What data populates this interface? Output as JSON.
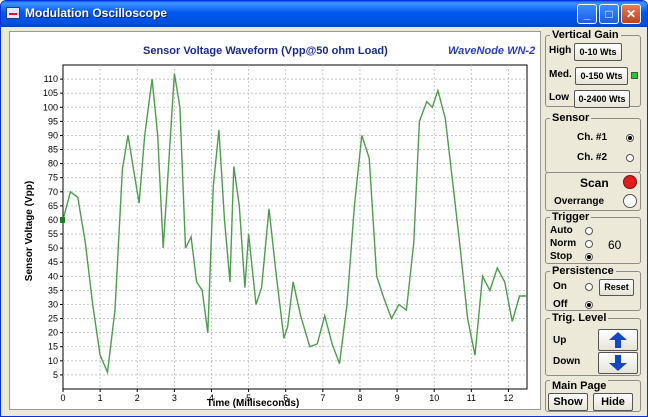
{
  "window": {
    "title": "Modulation Oscilloscope"
  },
  "plot": {
    "title": "Sensor Voltage Waveform (Vpp@50 ohm Load)",
    "brand": "WaveNode WN-2",
    "marker_color": "#1c7d1c"
  },
  "chart_data": {
    "type": "line",
    "xlabel": "Time (Milliseconds)",
    "ylabel": "Sensor Voltage (Vpp)",
    "xlim": [
      0,
      12.5
    ],
    "ylim": [
      0,
      115
    ],
    "x_ticks": [
      "0",
      "1",
      "2",
      "3",
      "4",
      "5",
      "6",
      "7",
      "8",
      "9",
      "10",
      "11",
      "12"
    ],
    "y_ticks": [
      "5",
      "10",
      "15",
      "20",
      "25",
      "30",
      "35",
      "40",
      "45",
      "50",
      "55",
      "60",
      "65",
      "70",
      "75",
      "80",
      "85",
      "90",
      "95",
      "100",
      "105",
      "110"
    ],
    "grid": true,
    "line_color": "#4f9b4f",
    "x": [
      0,
      0.2,
      0.4,
      0.6,
      0.8,
      1.0,
      1.2,
      1.4,
      1.6,
      1.75,
      1.9,
      2.05,
      2.2,
      2.4,
      2.55,
      2.7,
      2.8,
      3.0,
      3.15,
      3.3,
      3.45,
      3.6,
      3.75,
      3.9,
      4.05,
      4.2,
      4.35,
      4.5,
      4.6,
      4.75,
      4.9,
      5.0,
      5.2,
      5.35,
      5.55,
      5.75,
      5.95,
      6.05,
      6.2,
      6.4,
      6.65,
      6.85,
      7.05,
      7.25,
      7.45,
      7.65,
      7.85,
      8.05,
      8.25,
      8.45,
      8.65,
      8.85,
      9.05,
      9.25,
      9.45,
      9.6,
      9.8,
      9.95,
      10.1,
      10.3,
      10.5,
      10.7,
      10.9,
      11.1,
      11.3,
      11.5,
      11.7,
      11.9,
      12.1,
      12.3,
      12.5
    ],
    "y": [
      60,
      70,
      68,
      52,
      30,
      12,
      6,
      28,
      78,
      90,
      78,
      66,
      90,
      110,
      90,
      50,
      70,
      112,
      100,
      50,
      54,
      38,
      35,
      20,
      72,
      92,
      60,
      38,
      79,
      65,
      36,
      55,
      30,
      36,
      64,
      40,
      18,
      22,
      38,
      26,
      15,
      16,
      26,
      16,
      9,
      30,
      65,
      90,
      82,
      40,
      32,
      25,
      30,
      28,
      52,
      95,
      102,
      100,
      106,
      96,
      73,
      50,
      25,
      12,
      40,
      35,
      43,
      38,
      24,
      33,
      33
    ]
  },
  "vertical_gain": {
    "title": "Vertical Gain",
    "high_label": "High",
    "high_button": "0-10 Wts",
    "med_label": "Med.",
    "med_button": "0-150 Wts",
    "low_label": "Low",
    "low_button": "0-2400 Wts",
    "selected": "Med.",
    "indicator_color": "#3cbc3c"
  },
  "sensor": {
    "title": "Sensor",
    "ch1": "Ch. #1",
    "ch2": "Ch. #2",
    "selected": "Ch. #1"
  },
  "scan": {
    "label": "Scan",
    "color": "#e01c1c"
  },
  "overrange": {
    "label": "Overrange"
  },
  "trigger": {
    "title": "Trigger",
    "auto": "Auto",
    "norm": "Norm",
    "stop": "Stop",
    "selected": "Stop",
    "value": "60"
  },
  "persistence": {
    "title": "Persistence",
    "on": "On",
    "off": "Off",
    "selected": "Off",
    "reset": "Reset"
  },
  "trig_level": {
    "title": "Trig. Level",
    "up": "Up",
    "down": "Down",
    "arrow_color": "#1447c8"
  },
  "main_page": {
    "title": "Main Page",
    "show": "Show",
    "hide": "Hide"
  }
}
